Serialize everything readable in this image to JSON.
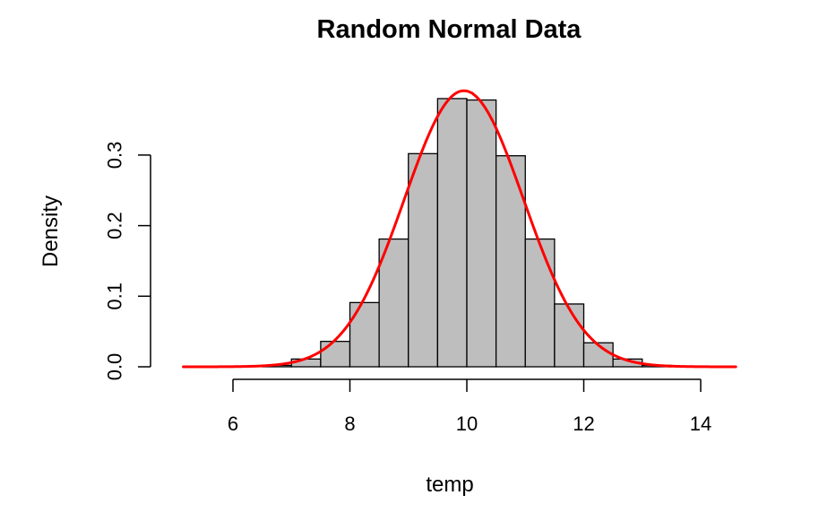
{
  "chart_data": {
    "type": "bar",
    "subtype": "histogram-with-density",
    "title": "Random Normal Data",
    "xlabel": "temp",
    "ylabel": "Density",
    "xlim": [
      5.0,
      14.8
    ],
    "ylim": [
      0,
      0.39
    ],
    "x_ticks": [
      6,
      8,
      10,
      12,
      14
    ],
    "y_ticks": [
      0.0,
      0.1,
      0.2,
      0.3
    ],
    "x_tick_labels": [
      "6",
      "8",
      "10",
      "12",
      "14"
    ],
    "y_tick_labels": [
      "0.0",
      "0.1",
      "0.2",
      "0.3"
    ],
    "bin_edges": [
      6.0,
      6.5,
      7.0,
      7.5,
      8.0,
      8.5,
      9.0,
      9.5,
      10.0,
      10.5,
      11.0,
      11.5,
      12.0,
      12.5,
      13.0,
      13.5,
      14.0
    ],
    "bins": [
      {
        "x0": 6.5,
        "x1": 7.0,
        "density": 0.002
      },
      {
        "x0": 7.0,
        "x1": 7.5,
        "density": 0.011
      },
      {
        "x0": 7.5,
        "x1": 8.0,
        "density": 0.036
      },
      {
        "x0": 8.0,
        "x1": 8.5,
        "density": 0.091
      },
      {
        "x0": 8.5,
        "x1": 9.0,
        "density": 0.181
      },
      {
        "x0": 9.0,
        "x1": 9.5,
        "density": 0.302
      },
      {
        "x0": 9.5,
        "x1": 10.0,
        "density": 0.38
      },
      {
        "x0": 10.0,
        "x1": 10.5,
        "density": 0.378
      },
      {
        "x0": 10.5,
        "x1": 11.0,
        "density": 0.299
      },
      {
        "x0": 11.0,
        "x1": 11.5,
        "density": 0.181
      },
      {
        "x0": 11.5,
        "x1": 12.0,
        "density": 0.089
      },
      {
        "x0": 12.0,
        "x1": 12.5,
        "density": 0.034
      },
      {
        "x0": 12.5,
        "x1": 13.0,
        "density": 0.011
      },
      {
        "x0": 13.0,
        "x1": 13.5,
        "density": 0.002
      }
    ],
    "density_curve": {
      "x_range": [
        5.15,
        14.6
      ],
      "mean": 9.95,
      "sd": 1.02,
      "peak_flat": [
        9.82,
        10.1
      ]
    },
    "bar_color": "#bebebe",
    "curve_color": "#ff0000",
    "grid": false,
    "legend": "none"
  }
}
